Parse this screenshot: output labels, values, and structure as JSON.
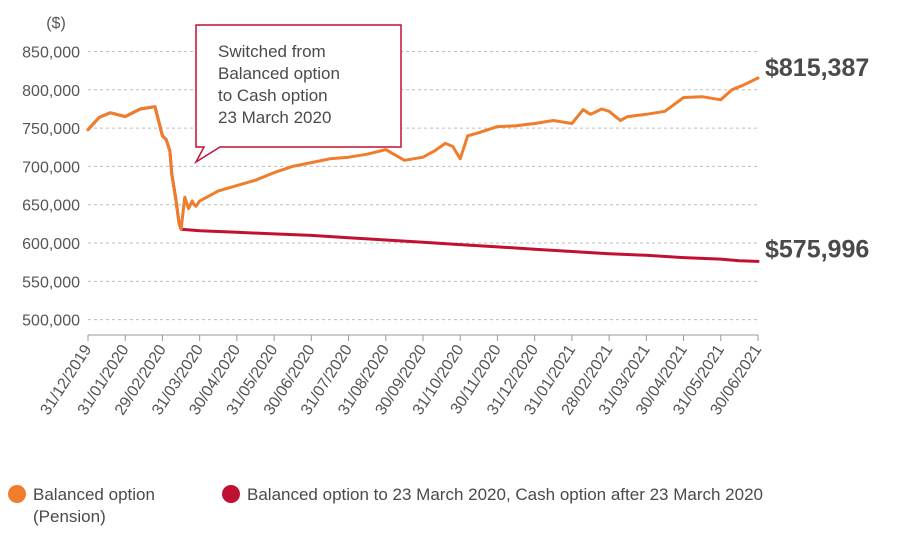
{
  "chart_data": {
    "type": "line",
    "unit_label": "($)",
    "ylim": [
      480000,
      865000
    ],
    "y_ticks": [
      500000,
      550000,
      600000,
      650000,
      700000,
      750000,
      800000,
      850000
    ],
    "y_tick_labels": [
      "500,000",
      "550,000",
      "600,000",
      "650,000",
      "700,000",
      "750,000",
      "800,000",
      "850,000"
    ],
    "x_tick_labels": [
      "31/12/2019",
      "31/01/2020",
      "29/02/2020",
      "31/03/2020",
      "30/04/2020",
      "31/05/2020",
      "30/06/2020",
      "31/07/2020",
      "31/08/2020",
      "30/09/2020",
      "31/10/2020",
      "30/11/2020",
      "31/12/2020",
      "31/01/2021",
      "28/02/2021",
      "31/03/2021",
      "30/04/2021",
      "31/05/2021",
      "30/06/2021"
    ],
    "x_range_months": [
      0,
      18
    ],
    "series": [
      {
        "name": "Balanced option (Pension)",
        "color": "#f07d2b",
        "x_month": [
          0,
          0.3,
          0.6,
          1.0,
          1.4,
          1.8,
          2.0,
          2.1,
          2.2,
          2.25,
          2.35,
          2.45,
          2.5,
          2.6,
          2.7,
          2.8,
          2.85,
          2.9,
          3.0,
          3.2,
          3.5,
          4.0,
          4.5,
          5.0,
          5.5,
          6.0,
          6.5,
          7.0,
          7.5,
          8.0,
          8.5,
          9.0,
          9.3,
          9.6,
          9.8,
          10.0,
          10.2,
          10.5,
          11.0,
          11.5,
          12.0,
          12.5,
          13.0,
          13.3,
          13.5,
          13.8,
          14.0,
          14.3,
          14.5,
          15.0,
          15.5,
          16.0,
          16.5,
          17.0,
          17.3,
          17.6,
          18.0
        ],
        "values": [
          748000,
          764000,
          770000,
          765000,
          775000,
          778000,
          740000,
          735000,
          720000,
          690000,
          660000,
          625000,
          618000,
          660000,
          645000,
          655000,
          650000,
          648000,
          655000,
          660000,
          668000,
          675000,
          682000,
          692000,
          700000,
          705000,
          710000,
          712000,
          716000,
          722000,
          708000,
          712000,
          720000,
          730000,
          726000,
          710000,
          740000,
          744000,
          752000,
          753000,
          756000,
          760000,
          756000,
          774000,
          768000,
          775000,
          772000,
          760000,
          765000,
          768000,
          772000,
          790000,
          791000,
          787000,
          800000,
          806000,
          815387
        ]
      },
      {
        "name": "Balanced option to 23 March 2020, Cash option after 23 March 2020",
        "color": "#c01133",
        "x_month": [
          0,
          0.3,
          0.6,
          1.0,
          1.4,
          1.8,
          2.0,
          2.1,
          2.2,
          2.25,
          2.35,
          2.45,
          2.5,
          2.75,
          3.0,
          4.0,
          5.0,
          6.0,
          7.0,
          8.0,
          9.0,
          10.0,
          11.0,
          12.0,
          13.0,
          14.0,
          15.0,
          16.0,
          17.0,
          17.5,
          18.0
        ],
        "values": [
          748000,
          764000,
          770000,
          765000,
          775000,
          778000,
          740000,
          735000,
          720000,
          690000,
          660000,
          625000,
          618000,
          617000,
          616000,
          614000,
          612000,
          610000,
          607000,
          604000,
          601000,
          598000,
          595000,
          592000,
          589000,
          586000,
          584000,
          581000,
          579000,
          577000,
          575996
        ]
      }
    ],
    "end_labels": [
      "$815,387",
      "$575,996"
    ],
    "annotation": "Switched from Balanced option to Cash option 23 March 2020",
    "annotation_lines": [
      "Switched from",
      "Balanced option",
      "to Cash option",
      "23 March 2020"
    ],
    "grid": "horizontal dashed",
    "legend_position": "bottom"
  },
  "legend": {
    "item1_line1": "Balanced option",
    "item1_line2": "(Pension)",
    "item2": "Balanced option to 23 March 2020, Cash option after 23 March 2020",
    "item1_color": "#f07d2b",
    "item2_color": "#c01133"
  }
}
